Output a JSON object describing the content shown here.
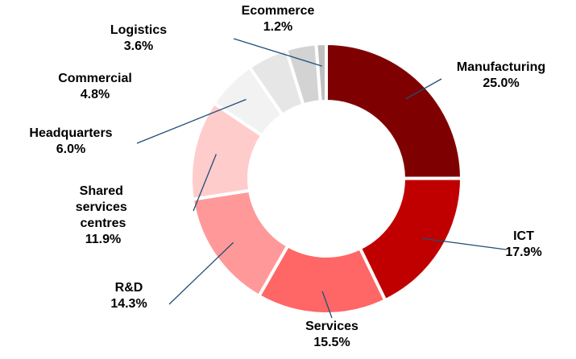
{
  "chart_data": {
    "type": "pie",
    "categories": [
      "Manufacturing",
      "ICT",
      "Services",
      "R&D",
      "Shared services centres",
      "Headquarters",
      "Commercial",
      "Logistics",
      "Ecommerce"
    ],
    "values": [
      25.0,
      17.9,
      15.5,
      14.3,
      11.9,
      6.0,
      4.8,
      3.6,
      1.2
    ],
    "value_labels": [
      "25.0%",
      "17.9%",
      "15.5%",
      "14.3%",
      "11.9%",
      "6.0%",
      "4.8%",
      "3.6%",
      "1.2%"
    ],
    "colors": [
      "#7f0000",
      "#c00000",
      "#ff6666",
      "#ff9999",
      "#ffcccc",
      "#f2f2f2",
      "#e6e6e6",
      "#d3d3d3",
      "#bfbfbf"
    ],
    "donut": true
  }
}
